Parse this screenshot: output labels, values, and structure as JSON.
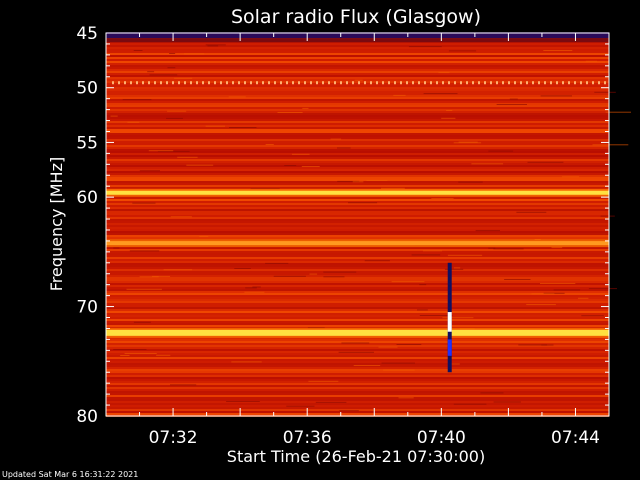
{
  "chart_data": {
    "type": "heatmap",
    "title": "Solar radio Flux (Glasgow)",
    "xlabel": "Start Time (26-Feb-21 07:30:00)",
    "ylabel": "Frequency [MHz]",
    "x_range": [
      "07:30:00",
      "07:45:00"
    ],
    "x_ticks": [
      "07:32",
      "07:36",
      "07:40",
      "07:44"
    ],
    "ylim": [
      45,
      80
    ],
    "y_ticks": [
      45,
      50,
      55,
      60,
      70,
      80
    ],
    "colormap": "black-red-yellow-white",
    "bright_bands_mhz": [
      59.6,
      64.2,
      72.4
    ],
    "dark_band_mhz": 45.2,
    "dotted_band_mhz": 49.5,
    "burst": {
      "time": "07:40:15",
      "freq_range_mhz": [
        66,
        76
      ]
    },
    "colors": {
      "background": "#000000",
      "text": "#ffffff",
      "axis": "#ffffff"
    }
  },
  "footer": {
    "updated": "Updated Sat Mar  6 16:31:22 2021"
  }
}
